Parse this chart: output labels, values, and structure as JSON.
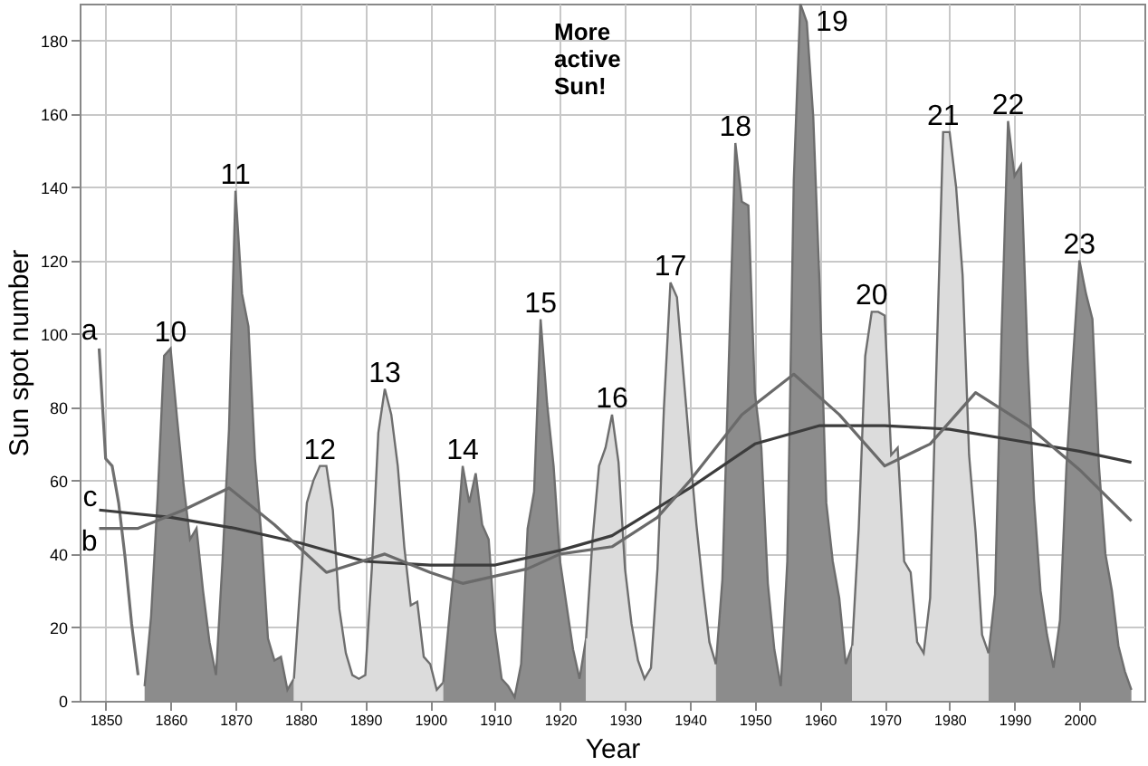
{
  "chart_data": {
    "type": "area",
    "xlabel": "Year",
    "ylabel": "Sun spot number",
    "xlim": [
      1846,
      2010
    ],
    "ylim": [
      0,
      190
    ],
    "xticks": [
      1850,
      1860,
      1870,
      1880,
      1890,
      1900,
      1910,
      1920,
      1930,
      1940,
      1950,
      1960,
      1970,
      1980,
      1990,
      2000
    ],
    "yticks": [
      0,
      20,
      40,
      60,
      80,
      100,
      120,
      140,
      160,
      180
    ],
    "grid": true,
    "series": [
      {
        "type": "line",
        "color": "#707070",
        "x": [
          1849,
          1850,
          1851,
          1852,
          1853,
          1854,
          1855
        ],
        "values": [
          96,
          66,
          64,
          54,
          39,
          21,
          7
        ]
      },
      {
        "color": "#8c8c8c",
        "x": [
          1856,
          1857,
          1858,
          1859,
          1860,
          1861,
          1862,
          1863,
          1864,
          1865,
          1866,
          1867,
          1868,
          1869,
          1870,
          1871,
          1872,
          1873,
          1874,
          1875,
          1876,
          1877,
          1878,
          1879
        ],
        "values": [
          4,
          23,
          55,
          94,
          96,
          77,
          59,
          44,
          47,
          30,
          16,
          7,
          38,
          74,
          139,
          111,
          102,
          66,
          45,
          17,
          11,
          12,
          3,
          6
        ]
      },
      {
        "color": "#dcdcdc",
        "x": [
          1879,
          1880,
          1881,
          1882,
          1883,
          1884,
          1885,
          1886,
          1887,
          1888,
          1889,
          1890,
          1891,
          1892,
          1893,
          1894,
          1895,
          1896,
          1897,
          1898,
          1899,
          1900,
          1901,
          1902
        ],
        "values": [
          6,
          32,
          54,
          60,
          64,
          64,
          52,
          25,
          13,
          7,
          6,
          7,
          36,
          73,
          85,
          78,
          64,
          42,
          26,
          27,
          12,
          10,
          3,
          5
        ]
      },
      {
        "color": "#8c8c8c",
        "x": [
          1902,
          1903,
          1904,
          1905,
          1906,
          1907,
          1908,
          1909,
          1910,
          1911,
          1912,
          1913,
          1914,
          1915,
          1916,
          1917,
          1918,
          1919,
          1920,
          1921,
          1922,
          1923,
          1924
        ],
        "values": [
          5,
          24,
          42,
          64,
          54,
          62,
          48,
          44,
          19,
          6,
          4,
          1,
          10,
          47,
          57,
          104,
          81,
          64,
          38,
          26,
          14,
          6,
          17
        ]
      },
      {
        "color": "#dcdcdc",
        "x": [
          1924,
          1925,
          1926,
          1927,
          1928,
          1929,
          1930,
          1931,
          1932,
          1933,
          1934,
          1935,
          1936,
          1937,
          1938,
          1939,
          1940,
          1941,
          1942,
          1943,
          1944
        ],
        "values": [
          17,
          44,
          64,
          69,
          78,
          65,
          36,
          21,
          11,
          6,
          9,
          36,
          80,
          114,
          110,
          89,
          68,
          48,
          31,
          16,
          10
        ]
      },
      {
        "color": "#8c8c8c",
        "x": [
          1944,
          1945,
          1946,
          1947,
          1948,
          1949,
          1950,
          1951,
          1952,
          1953,
          1954,
          1955,
          1956,
          1957,
          1958,
          1959,
          1960,
          1961,
          1962,
          1963,
          1964,
          1965
        ],
        "values": [
          10,
          33,
          93,
          152,
          136,
          135,
          84,
          69,
          32,
          14,
          4,
          38,
          142,
          190,
          185,
          159,
          112,
          54,
          38,
          28,
          10,
          15
        ]
      },
      {
        "color": "#dcdcdc",
        "x": [
          1965,
          1966,
          1967,
          1968,
          1969,
          1970,
          1971,
          1972,
          1973,
          1974,
          1975,
          1976,
          1977,
          1978,
          1979,
          1980,
          1981,
          1982,
          1983,
          1984,
          1985,
          1986
        ],
        "values": [
          15,
          47,
          94,
          106,
          106,
          105,
          67,
          69,
          38,
          35,
          16,
          13,
          28,
          93,
          155,
          155,
          140,
          116,
          67,
          46,
          18,
          13
        ]
      },
      {
        "color": "#8c8c8c",
        "x": [
          1986,
          1987,
          1988,
          1989,
          1990,
          1991,
          1992,
          1993,
          1994,
          1995,
          1996,
          1997,
          1998,
          1999,
          2000,
          2001,
          2002,
          2003,
          2004,
          2005,
          2006,
          2007,
          2008
        ],
        "values": [
          13,
          29,
          100,
          158,
          143,
          146,
          94,
          55,
          30,
          18,
          9,
          22,
          64,
          93,
          120,
          111,
          104,
          64,
          40,
          30,
          15,
          8,
          3
        ]
      },
      {
        "type": "line",
        "name": "c",
        "color": "#3c3c3c",
        "x": [
          1849,
          1860,
          1870,
          1880,
          1890,
          1900,
          1910,
          1920,
          1928,
          1940,
          1950,
          1960,
          1970,
          1980,
          1990,
          2000,
          2008
        ],
        "values": [
          52,
          50,
          47,
          43,
          38,
          37,
          37,
          41,
          45,
          58,
          70,
          75,
          75,
          74,
          71,
          68,
          65
        ]
      },
      {
        "type": "line",
        "name": "b",
        "color": "#6a6a6a",
        "x": [
          1849,
          1855,
          1862,
          1869,
          1876,
          1884,
          1893,
          1900,
          1905,
          1915,
          1920,
          1928,
          1935,
          1940,
          1948,
          1956,
          1963,
          1970,
          1977,
          1984,
          1992,
          2000,
          2008
        ],
        "values": [
          47,
          47,
          52,
          58,
          48,
          35,
          40,
          35,
          32,
          36,
          40,
          42,
          50,
          60,
          78,
          89,
          78,
          64,
          70,
          84,
          75,
          63,
          49
        ]
      }
    ],
    "annotations": [
      {
        "text": "a",
        "x": 1849,
        "y": 96
      },
      {
        "text": "10",
        "x": 1860,
        "y": 96
      },
      {
        "text": "11",
        "x": 1870,
        "y": 139
      },
      {
        "text": "12",
        "x": 1883,
        "y": 64
      },
      {
        "text": "13",
        "x": 1893,
        "y": 85
      },
      {
        "text": "14",
        "x": 1905,
        "y": 64
      },
      {
        "text": "15",
        "x": 1917,
        "y": 104
      },
      {
        "text": "16",
        "x": 1928,
        "y": 78
      },
      {
        "text": "17",
        "x": 1937,
        "y": 114
      },
      {
        "text": "18",
        "x": 1947,
        "y": 152
      },
      {
        "text": "19",
        "x": 1958,
        "y": 185
      },
      {
        "text": "20",
        "x": 1968,
        "y": 106
      },
      {
        "text": "21",
        "x": 1979,
        "y": 155
      },
      {
        "text": "22",
        "x": 1989,
        "y": 158
      },
      {
        "text": "23",
        "x": 2000,
        "y": 120
      },
      "More active Sun!"
    ]
  }
}
